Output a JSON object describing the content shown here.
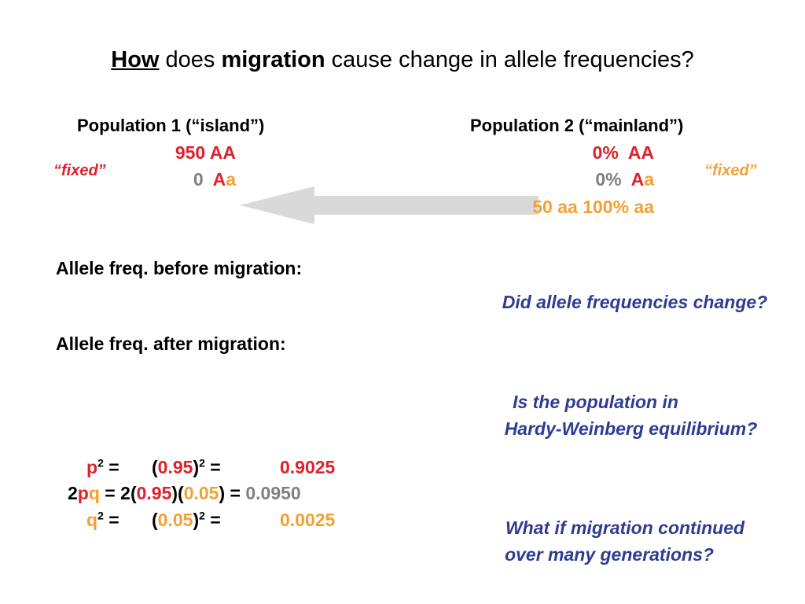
{
  "title": {
    "word1": "How",
    "word2": " does ",
    "word3": "migration",
    "word4": " cause change in allele frequencies?"
  },
  "pop1": {
    "header": "Population 1 (“island”)",
    "row1_count": "950",
    "row1_geno": "AA",
    "row2_count": "0",
    "row2_geno_A": "A",
    "row2_geno_a": "a",
    "fixed": "“fixed”"
  },
  "pop2": {
    "header": "Population 2 (“mainland”)",
    "row1_pct": "0%",
    "row1_geno": "AA",
    "row2_pct": "0%",
    "row2_geno_A": "A",
    "row2_geno_a": "a",
    "row3": "50 aa 100% aa",
    "fixed": "“fixed”"
  },
  "labels": {
    "before": "Allele freq. before migration:",
    "after": "Allele freq. after migration:"
  },
  "questions": {
    "q1": "Did allele frequencies change?",
    "q2_line1": "Is the population in",
    "q2_line2": "Hardy-Weinberg equilibrium?",
    "q3_line1": "What if migration continued",
    "q3_line2": "over many generations?"
  },
  "equations": {
    "p": "p",
    "q": "q",
    "two": "2",
    "exp": "2",
    "eq": " = ",
    "p_val": "0.95",
    "q_val": "0.05",
    "p2_result": "0.9025",
    "pq_result": "0.0950",
    "q2_result": "0.0025"
  },
  "colors": {
    "red": "#e0202a",
    "orange": "#f5a033",
    "grey": "#7f7f7f",
    "blue": "#2f3b93",
    "arrow": "#d9d9d9"
  }
}
